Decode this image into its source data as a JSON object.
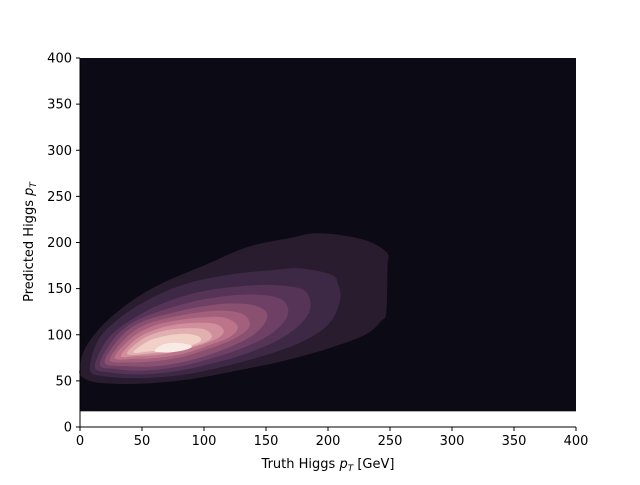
{
  "chart_data": {
    "type": "heatmap",
    "subtype": "kde-filled-contour",
    "title": "",
    "xlabel_main": "Truth Higgs ",
    "xlabel_symbol": "p",
    "xlabel_sub": "T",
    "xlabel_unit": " [GeV]",
    "ylabel_main": "Predicted Higgs ",
    "ylabel_symbol": "p",
    "ylabel_sub": "T",
    "xlim": [
      0,
      400
    ],
    "ylim": [
      0,
      400
    ],
    "xticks": [
      0,
      50,
      100,
      150,
      200,
      250,
      300,
      350,
      400
    ],
    "yticks": [
      0,
      50,
      100,
      150,
      200,
      250,
      300,
      350,
      400
    ],
    "x_tick_labels": [
      "0",
      "50",
      "100",
      "150",
      "200",
      "250",
      "300",
      "350",
      "400"
    ],
    "y_tick_labels": [
      "0",
      "50",
      "100",
      "150",
      "200",
      "250",
      "300",
      "350",
      "400"
    ],
    "grid": false,
    "filled_region_y_range": [
      17,
      400
    ],
    "background_color": "#0c0a14",
    "contour_colors": [
      "#2a1c2f",
      "#3d2945",
      "#553457",
      "#6e4066",
      "#89506f",
      "#a3607c",
      "#bb7489",
      "#cf8f9c",
      "#e2afb1",
      "#f1d0c8",
      "#f8eae5"
    ],
    "density_peak": {
      "x": 75,
      "y": 85
    },
    "contour_levels": [
      [
        [
          0,
          65
        ],
        [
          4,
          85
        ],
        [
          18,
          110
        ],
        [
          40,
          135
        ],
        [
          65,
          155
        ],
        [
          100,
          175
        ],
        [
          135,
          195
        ],
        [
          170,
          205
        ],
        [
          190,
          210
        ],
        [
          215,
          207
        ],
        [
          235,
          200
        ],
        [
          248,
          188
        ],
        [
          248,
          175
        ],
        [
          247,
          125
        ],
        [
          243,
          115
        ],
        [
          230,
          100
        ],
        [
          200,
          85
        ],
        [
          165,
          72
        ],
        [
          130,
          62
        ],
        [
          90,
          52
        ],
        [
          50,
          47
        ],
        [
          15,
          48
        ],
        [
          1,
          55
        ]
      ],
      [
        [
          8,
          62
        ],
        [
          15,
          95
        ],
        [
          32,
          118
        ],
        [
          55,
          138
        ],
        [
          85,
          155
        ],
        [
          120,
          165
        ],
        [
          155,
          170
        ],
        [
          178,
          172
        ],
        [
          203,
          165
        ],
        [
          208,
          155
        ],
        [
          210,
          140
        ],
        [
          205,
          120
        ],
        [
          195,
          105
        ],
        [
          175,
          90
        ],
        [
          150,
          78
        ],
        [
          120,
          67
        ],
        [
          85,
          57
        ],
        [
          50,
          53
        ],
        [
          20,
          55
        ]
      ],
      [
        [
          12,
          65
        ],
        [
          22,
          95
        ],
        [
          40,
          115
        ],
        [
          65,
          133
        ],
        [
          95,
          146
        ],
        [
          125,
          152
        ],
        [
          155,
          154
        ],
        [
          178,
          150
        ],
        [
          185,
          140
        ],
        [
          185,
          125
        ],
        [
          175,
          108
        ],
        [
          158,
          93
        ],
        [
          135,
          80
        ],
        [
          110,
          70
        ],
        [
          80,
          61
        ],
        [
          50,
          57
        ],
        [
          25,
          59
        ]
      ],
      [
        [
          16,
          68
        ],
        [
          28,
          97
        ],
        [
          45,
          115
        ],
        [
          70,
          128
        ],
        [
          98,
          138
        ],
        [
          125,
          143
        ],
        [
          148,
          143
        ],
        [
          163,
          138
        ],
        [
          168,
          125
        ],
        [
          162,
          110
        ],
        [
          148,
          96
        ],
        [
          128,
          84
        ],
        [
          105,
          74
        ],
        [
          78,
          65
        ],
        [
          50,
          61
        ],
        [
          28,
          63
        ]
      ],
      [
        [
          20,
          70
        ],
        [
          33,
          98
        ],
        [
          50,
          114
        ],
        [
          75,
          124
        ],
        [
          100,
          131
        ],
        [
          122,
          134
        ],
        [
          140,
          132
        ],
        [
          150,
          125
        ],
        [
          150,
          115
        ],
        [
          142,
          102
        ],
        [
          128,
          91
        ],
        [
          110,
          81
        ],
        [
          88,
          72
        ],
        [
          62,
          66
        ],
        [
          38,
          66
        ]
      ],
      [
        [
          24,
          73
        ],
        [
          38,
          98
        ],
        [
          55,
          112
        ],
        [
          78,
          120
        ],
        [
          100,
          125
        ],
        [
          118,
          126
        ],
        [
          132,
          122
        ],
        [
          137,
          112
        ],
        [
          133,
          103
        ],
        [
          120,
          93
        ],
        [
          102,
          84
        ],
        [
          80,
          75
        ],
        [
          58,
          71
        ],
        [
          38,
          70
        ]
      ],
      [
        [
          28,
          75
        ],
        [
          42,
          97
        ],
        [
          60,
          110
        ],
        [
          80,
          116
        ],
        [
          100,
          119
        ],
        [
          115,
          119
        ],
        [
          125,
          113
        ],
        [
          127,
          106
        ],
        [
          120,
          97
        ],
        [
          105,
          89
        ],
        [
          85,
          80
        ],
        [
          63,
          75
        ],
        [
          45,
          74
        ]
      ],
      [
        [
          33,
          77
        ],
        [
          46,
          96
        ],
        [
          64,
          107
        ],
        [
          83,
          112
        ],
        [
          100,
          113
        ],
        [
          111,
          111
        ],
        [
          116,
          104
        ],
        [
          112,
          97
        ],
        [
          100,
          90
        ],
        [
          82,
          83
        ],
        [
          62,
          78
        ],
        [
          46,
          77
        ]
      ],
      [
        [
          38,
          79
        ],
        [
          50,
          95
        ],
        [
          67,
          104
        ],
        [
          85,
          107
        ],
        [
          100,
          106
        ],
        [
          106,
          100
        ],
        [
          104,
          94
        ],
        [
          92,
          88
        ],
        [
          76,
          83
        ],
        [
          58,
          80
        ]
      ],
      [
        [
          43,
          81
        ],
        [
          55,
          93
        ],
        [
          70,
          99
        ],
        [
          86,
          101
        ],
        [
          96,
          98
        ],
        [
          97,
          93
        ],
        [
          88,
          88
        ],
        [
          72,
          84
        ],
        [
          56,
          82
        ]
      ],
      [
        [
          60,
          83
        ],
        [
          68,
          90
        ],
        [
          80,
          91
        ],
        [
          90,
          88
        ],
        [
          86,
          84
        ],
        [
          74,
          81
        ],
        [
          64,
          81
        ]
      ]
    ]
  }
}
